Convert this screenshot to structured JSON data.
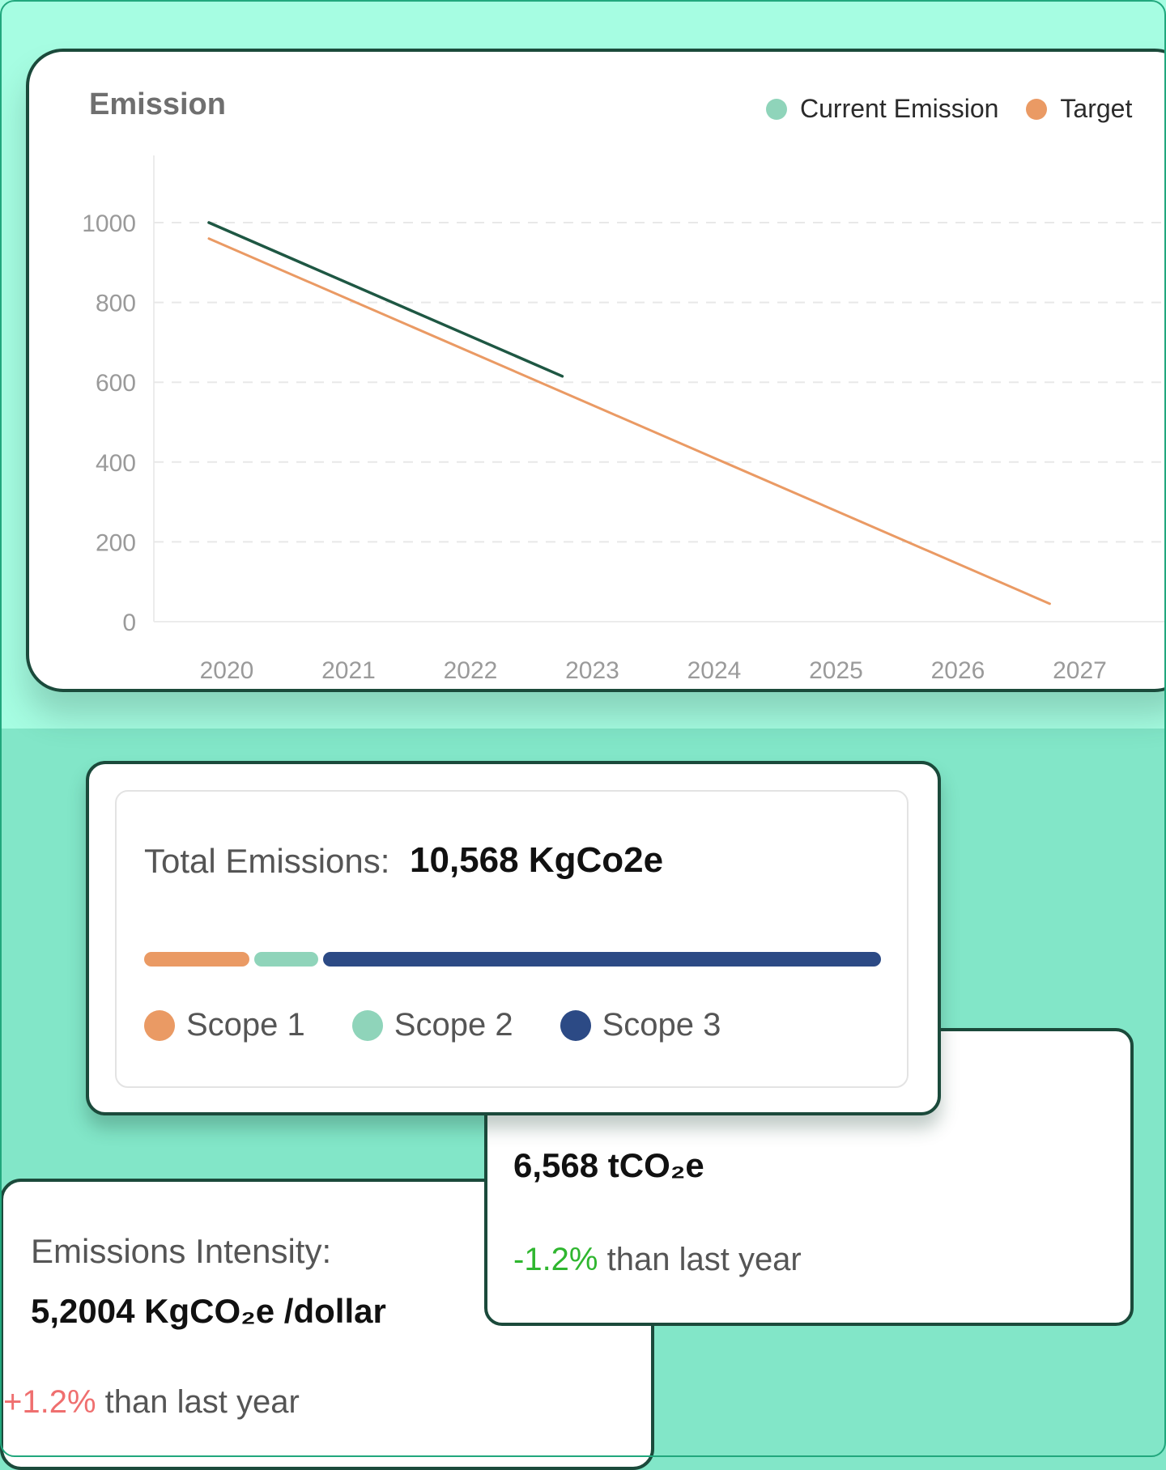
{
  "emission_chart": {
    "title": "Emission",
    "legend": [
      {
        "label": "Current Emission",
        "color": "#8fd4ba"
      },
      {
        "label": "Target",
        "color": "#ea9a64"
      }
    ]
  },
  "chart_data": {
    "type": "line",
    "title": "Emission",
    "xlabel": "",
    "ylabel": "",
    "x": [
      "2020",
      "2021",
      "2022",
      "2023",
      "2024",
      "2025",
      "2026",
      "2027"
    ],
    "ylim": [
      0,
      1000
    ],
    "yticks": [
      0,
      200,
      400,
      600,
      800,
      1000
    ],
    "grid": true,
    "legend_position": "top-right",
    "series": [
      {
        "name": "Current Emission",
        "color": "#1e5743",
        "points": [
          [
            2020,
            1000
          ],
          [
            2022.9,
            615
          ]
        ]
      },
      {
        "name": "Target",
        "color": "#ea9a64",
        "points": [
          [
            2020,
            960
          ],
          [
            2026.9,
            45
          ]
        ]
      }
    ]
  },
  "total_emissions": {
    "label": "Total Emissions:",
    "value": "10,568 KgCo2e",
    "scopes": [
      {
        "label": "Scope 1",
        "color": "#ea9a64",
        "share": 0.145
      },
      {
        "label": "Scope 2",
        "color": "#8fd4ba",
        "share": 0.088
      },
      {
        "label": "Scope 3",
        "color": "#2c4a85",
        "share": 0.767
      }
    ]
  },
  "co2_card": {
    "value": "6,568 tCO₂e",
    "change": "-1.2%",
    "change_suffix": " than last year"
  },
  "intensity_card": {
    "label": "Emissions Intensity:",
    "value": "5,2004 KgCO₂e /dollar",
    "change": "+1.2%",
    "change_suffix": " than last year"
  }
}
